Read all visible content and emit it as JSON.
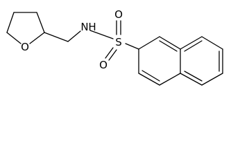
{
  "atoms": [
    {
      "label": "O"
    },
    {
      "label": "N"
    },
    {
      "label": "H"
    },
    {
      "label": "S"
    },
    {
      "label": "O"
    },
    {
      "label": "O"
    }
  ]
}
